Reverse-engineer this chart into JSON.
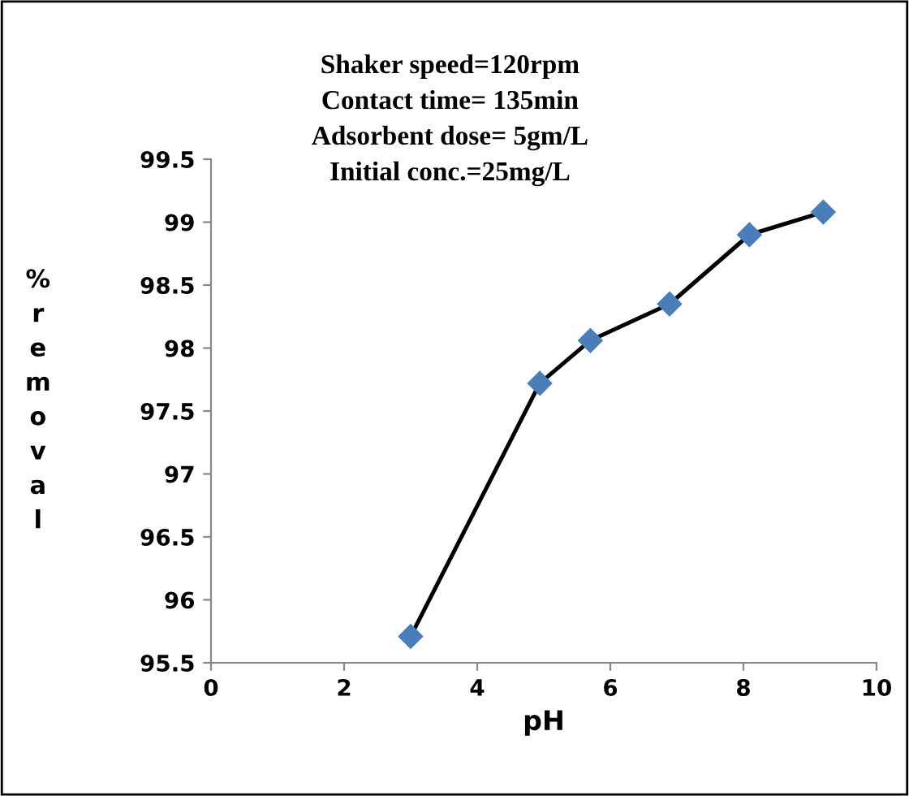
{
  "chart_data": {
    "type": "line",
    "xlabel": "pH",
    "ylabel": "% removal",
    "annotations": [
      "Shaker speed=120rpm",
      "Contact time= 135min",
      "Adsorbent dose= 5gm/L",
      "Initial conc.=25mg/L"
    ],
    "series": [
      {
        "color": "#4a7ebb",
        "x": [
          3,
          4.94,
          5.7,
          6.89,
          8.09,
          9.2
        ],
        "values": [
          95.71,
          97.72,
          98.06,
          98.35,
          98.9,
          99.08
        ]
      }
    ],
    "xlim": [
      0,
      10
    ],
    "xticks": [
      0,
      2,
      4,
      6,
      8,
      10
    ],
    "ylim": [
      95.5,
      99.5
    ],
    "yticks": [
      95.5,
      96,
      96.5,
      97,
      97.5,
      98,
      98.5,
      99,
      99.5
    ],
    "marker": "diamond",
    "line_style": "solid",
    "grid": false,
    "legend": false
  }
}
